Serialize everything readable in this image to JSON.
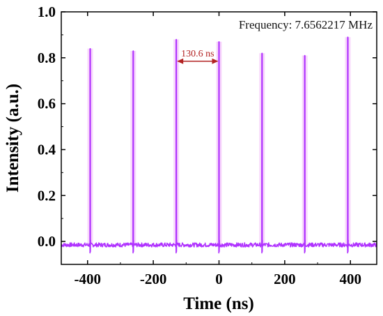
{
  "chart_data": {
    "type": "line",
    "xlabel": "Time (ns)",
    "ylabel": "Intensity (a.u.)",
    "xlim": [
      -480,
      480
    ],
    "ylim": [
      -0.1,
      1.0
    ],
    "xticks": [
      -400,
      -200,
      0,
      200,
      400
    ],
    "xtick_labels": [
      "-400",
      "-200",
      "0",
      "200",
      "400"
    ],
    "yticks": [
      0.0,
      0.2,
      0.4,
      0.6,
      0.8,
      1.0
    ],
    "ytick_labels": [
      "0.0",
      "0.2",
      "0.4",
      "0.6",
      "0.8",
      "1.0"
    ],
    "baseline": -0.015,
    "series": [
      {
        "color": "#b033ff",
        "pulse_times": [
          -392,
          -261,
          -130,
          0,
          131,
          261,
          392
        ],
        "pulse_peaks": [
          0.84,
          0.83,
          0.88,
          0.87,
          0.82,
          0.81,
          0.89
        ]
      }
    ],
    "annotations": {
      "frequency": "Frequency: 7.6562217 MHz",
      "period_label": "130.6 ns",
      "period_from": -130,
      "period_to": 0
    },
    "grid": false,
    "colors": {
      "signal": "#b033ff",
      "glow": "#f3b8f7",
      "arrow": "#b22222"
    }
  }
}
